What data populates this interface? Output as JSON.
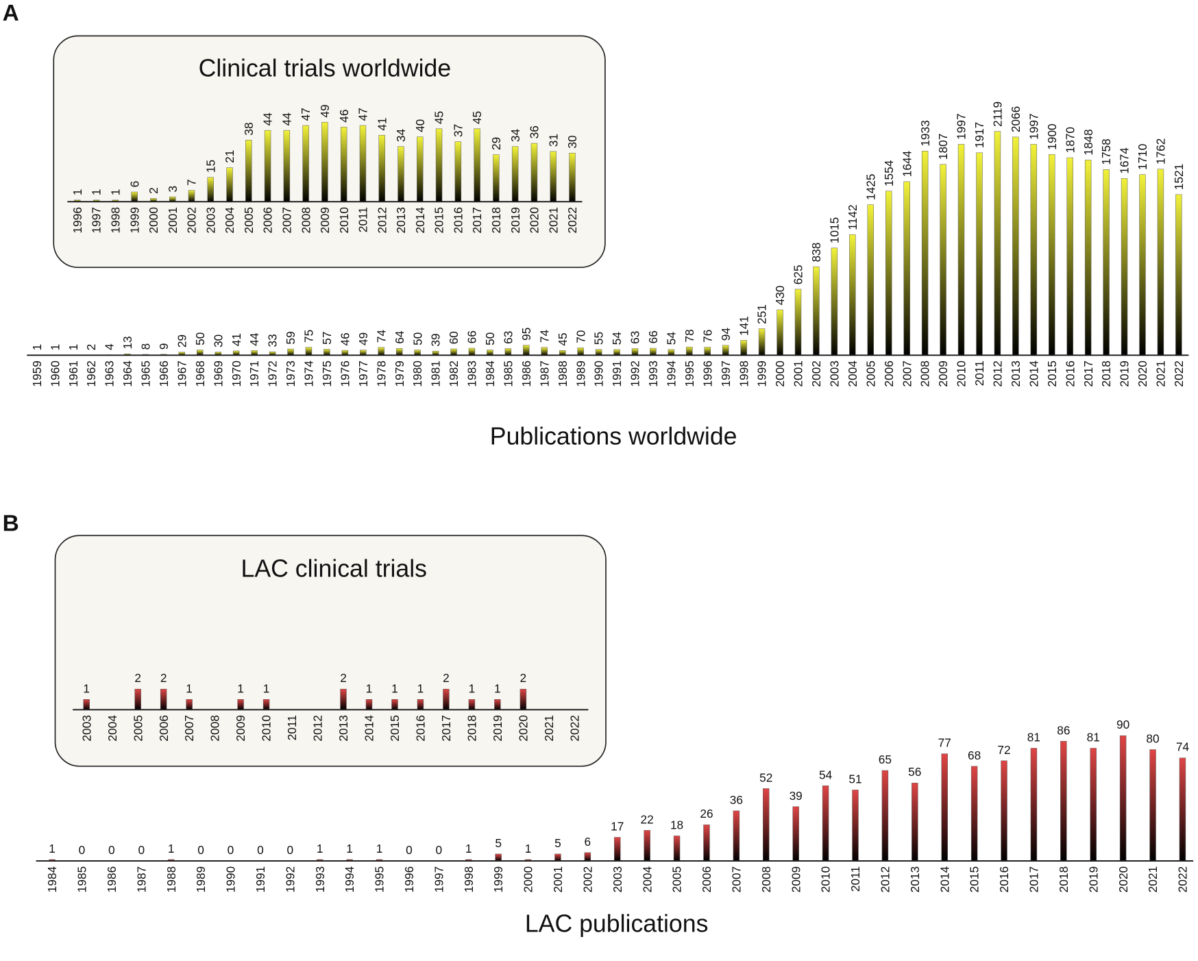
{
  "panels": {
    "a": "A",
    "b": "B"
  },
  "colors": {
    "yellow_top": "#f2f23a",
    "red_top": "#e04545",
    "bar_bottom": "#000000",
    "inset_bg": "#f8f6f1"
  },
  "chart_data": [
    {
      "id": "pubs_world",
      "type": "bar",
      "title": "Publications worldwide",
      "color": "yellow",
      "label_orientation": "vertical",
      "categories": [
        "1959",
        "1960",
        "1961",
        "1962",
        "1963",
        "1964",
        "1965",
        "1966",
        "1967",
        "1968",
        "1969",
        "1970",
        "1971",
        "1972",
        "1973",
        "1974",
        "1975",
        "1976",
        "1977",
        "1978",
        "1979",
        "1980",
        "1981",
        "1982",
        "1983",
        "1984",
        "1985",
        "1986",
        "1987",
        "1988",
        "1989",
        "1990",
        "1991",
        "1992",
        "1993",
        "1994",
        "1995",
        "1996",
        "1997",
        "1998",
        "1999",
        "2000",
        "2001",
        "2002",
        "2003",
        "2004",
        "2005",
        "2006",
        "2007",
        "2008",
        "2009",
        "2010",
        "2011",
        "2012",
        "2013",
        "2014",
        "2015",
        "2016",
        "2017",
        "2018",
        "2019",
        "2020",
        "2021",
        "2022"
      ],
      "values": [
        1,
        1,
        1,
        2,
        4,
        13,
        8,
        9,
        29,
        50,
        30,
        41,
        44,
        33,
        59,
        75,
        57,
        46,
        49,
        74,
        64,
        50,
        39,
        60,
        66,
        50,
        63,
        95,
        74,
        45,
        70,
        55,
        54,
        63,
        66,
        54,
        78,
        76,
        94,
        141,
        251,
        430,
        625,
        838,
        1015,
        1142,
        1425,
        1554,
        1644,
        1933,
        1807,
        1997,
        1917,
        2119,
        2066,
        1997,
        1900,
        1870,
        1848,
        1758,
        1674,
        1710,
        1762,
        1521
      ],
      "ylim": [
        0,
        2119
      ]
    },
    {
      "id": "trials_world",
      "type": "bar",
      "title": "Clinical trials worldwide",
      "color": "yellow",
      "label_orientation": "vertical",
      "categories": [
        "1996",
        "1997",
        "1998",
        "1999",
        "2000",
        "2001",
        "2002",
        "2003",
        "2004",
        "2005",
        "2006",
        "2007",
        "2008",
        "2009",
        "2010",
        "2011",
        "2012",
        "2013",
        "2014",
        "2015",
        "2016",
        "2017",
        "2018",
        "2019",
        "2020",
        "2021",
        "2022"
      ],
      "values": [
        1,
        1,
        1,
        6,
        2,
        3,
        7,
        15,
        21,
        38,
        44,
        44,
        47,
        49,
        46,
        47,
        41,
        34,
        40,
        45,
        37,
        45,
        29,
        34,
        36,
        31,
        30
      ],
      "ylim": [
        0,
        49
      ]
    },
    {
      "id": "pubs_lac",
      "type": "bar",
      "title": "LAC publications",
      "color": "red",
      "label_orientation": "horizontal",
      "categories": [
        "1984",
        "1985",
        "1986",
        "1987",
        "1988",
        "1989",
        "1990",
        "1991",
        "1992",
        "1993",
        "1994",
        "1995",
        "1996",
        "1997",
        "1998",
        "1999",
        "2000",
        "2001",
        "2002",
        "2003",
        "2004",
        "2005",
        "2006",
        "2007",
        "2008",
        "2009",
        "2010",
        "2011",
        "2012",
        "2013",
        "2014",
        "2015",
        "2016",
        "2017",
        "2018",
        "2019",
        "2020",
        "2021",
        "2022"
      ],
      "values": [
        1,
        0,
        0,
        0,
        1,
        0,
        0,
        0,
        0,
        1,
        1,
        1,
        0,
        0,
        1,
        5,
        1,
        5,
        6,
        17,
        22,
        18,
        26,
        36,
        52,
        39,
        54,
        51,
        65,
        56,
        77,
        68,
        72,
        81,
        86,
        81,
        90,
        80,
        74
      ],
      "ylim": [
        0,
        90
      ]
    },
    {
      "id": "trials_lac",
      "type": "bar",
      "title": "LAC clinical trials",
      "color": "red",
      "label_orientation": "horizontal",
      "categories": [
        "2003",
        "2004",
        "2005",
        "2006",
        "2007",
        "2008",
        "2009",
        "2010",
        "2011",
        "2012",
        "2013",
        "2014",
        "2015",
        "2016",
        "2017",
        "2018",
        "2019",
        "2020",
        "2021",
        "2022"
      ],
      "values": [
        1,
        0,
        2,
        2,
        1,
        0,
        1,
        1,
        0,
        0,
        2,
        1,
        1,
        1,
        2,
        1,
        1,
        2,
        0,
        0
      ],
      "hide_zero_labels": true,
      "ylim": [
        0,
        2
      ]
    }
  ]
}
